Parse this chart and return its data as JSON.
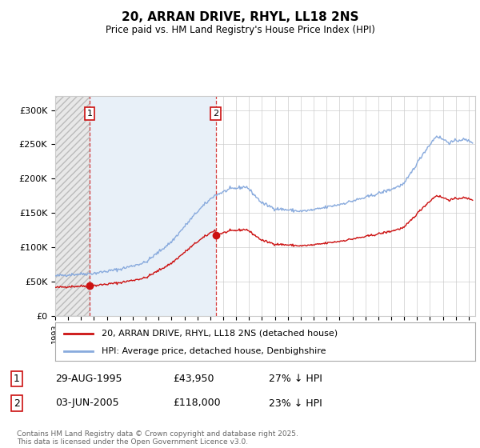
{
  "title": "20, ARRAN DRIVE, RHYL, LL18 2NS",
  "subtitle": "Price paid vs. HM Land Registry's House Price Index (HPI)",
  "xlim_start": 1993.0,
  "xlim_end": 2025.5,
  "ylim": [
    0,
    320000
  ],
  "yticks": [
    0,
    50000,
    100000,
    150000,
    200000,
    250000,
    300000
  ],
  "ytick_labels": [
    "£0",
    "£50K",
    "£100K",
    "£150K",
    "£200K",
    "£250K",
    "£300K"
  ],
  "purchase1_x": 1995.66,
  "purchase1_y": 43950,
  "purchase1_label": "1",
  "purchase2_x": 2005.42,
  "purchase2_y": 118000,
  "purchase2_label": "2",
  "line_color_price": "#cc1111",
  "line_color_hpi": "#88aadd",
  "marker_color_price": "#cc1111",
  "background_color": "#ffffff",
  "grid_color": "#cccccc",
  "hatch_color1": "#bbbbbb",
  "hatch_color2": "#ddeeff",
  "legend_label_price": "20, ARRAN DRIVE, RHYL, LL18 2NS (detached house)",
  "legend_label_hpi": "HPI: Average price, detached house, Denbighshire",
  "footer": "Contains HM Land Registry data © Crown copyright and database right 2025.\nThis data is licensed under the Open Government Licence v3.0.",
  "table_row1": [
    "1",
    "29-AUG-1995",
    "£43,950",
    "27% ↓ HPI"
  ],
  "table_row2": [
    "2",
    "03-JUN-2005",
    "£118,000",
    "23% ↓ HPI"
  ]
}
